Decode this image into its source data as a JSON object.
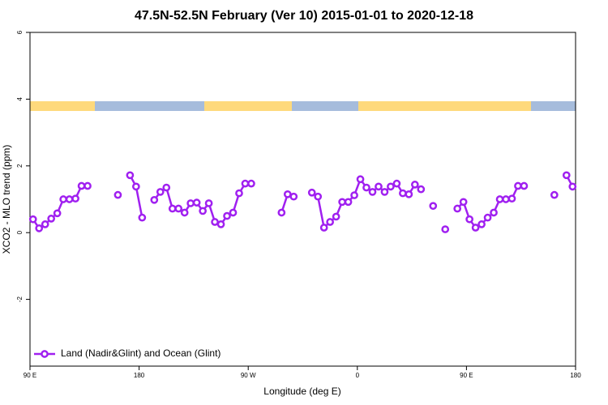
{
  "chart_data": {
    "type": "line",
    "title": "47.5N-52.5N February (Ver 10)   2015-01-01 to 2020-12-18",
    "x_label": "Longitude (deg E)",
    "y_label": "XCO2 - MLO trend (ppm)",
    "x": [
      92.5,
      97.5,
      102.5,
      107.5,
      112.5,
      117.5,
      122.5,
      127.5,
      132.5,
      137.5,
      142.5,
      147.5,
      152.5,
      157.5,
      162.5,
      167.5,
      172.5,
      177.5,
      182.5,
      187.5,
      192.5,
      197.5,
      202.5,
      207.5,
      212.5,
      217.5,
      222.5,
      227.5,
      232.5,
      237.5,
      242.5,
      247.5,
      252.5,
      257.5,
      262.5,
      267.5,
      272.5,
      277.5,
      282.5,
      287.5,
      292.5,
      297.5,
      302.5,
      307.5,
      312.5,
      317.5,
      322.5,
      327.5,
      332.5,
      337.5,
      342.5,
      347.5,
      352.5,
      357.5,
      362.5,
      367.5,
      372.5,
      377.5,
      382.5,
      387.5,
      392.5,
      397.5,
      402.5,
      407.5,
      412.5,
      417.5,
      422.5,
      427.5,
      432.5,
      437.5,
      442.5,
      447.5,
      452.5,
      457.5,
      462.5,
      467.5,
      472.5,
      477.5,
      482.5,
      487.5,
      492.5,
      497.5,
      502.5,
      507.5,
      512.5,
      517.5,
      522.5,
      527.5,
      532.5,
      537.5
    ],
    "series": [
      {
        "name": "Land (Nadir&Glint) and Ocean (Glint)",
        "color": "#a020f0",
        "values": [
          0.4,
          0.13,
          0.25,
          0.42,
          0.58,
          1.0,
          1.0,
          1.02,
          1.4,
          1.4,
          null,
          null,
          null,
          null,
          1.13,
          null,
          1.72,
          1.38,
          0.45,
          null,
          0.98,
          1.22,
          1.35,
          0.72,
          0.72,
          0.6,
          0.88,
          0.9,
          0.65,
          0.88,
          0.32,
          0.25,
          0.5,
          0.6,
          1.18,
          1.47,
          1.47,
          null,
          null,
          null,
          null,
          0.6,
          1.15,
          1.08,
          null,
          null,
          1.2,
          1.08,
          0.15,
          0.32,
          0.48,
          0.92,
          0.92,
          1.12,
          1.6,
          1.35,
          1.22,
          1.38,
          1.22,
          1.38,
          1.47,
          1.18,
          1.15,
          1.44,
          1.3,
          null,
          0.8,
          null,
          0.1,
          null,
          0.72,
          0.92,
          0.4,
          0.15,
          0.25,
          0.45,
          0.6,
          1.0,
          1.0,
          1.02,
          1.4,
          1.4,
          null,
          null,
          null,
          null,
          1.13,
          null,
          1.72,
          1.38
        ]
      }
    ],
    "xlim": [
      90,
      540
    ],
    "xticks": [
      {
        "value": 90,
        "label": "90 E"
      },
      180,
      {
        "value": 270,
        "label": "90 W"
      },
      {
        "value": 360,
        "label": "0"
      },
      {
        "value": 450,
        "label": "90 E"
      },
      {
        "value": 540,
        "label": "180"
      }
    ],
    "ylim": [
      -4,
      6
    ],
    "yticks": [
      -2,
      0,
      2,
      4,
      6
    ],
    "legend": "bottom-left"
  }
}
